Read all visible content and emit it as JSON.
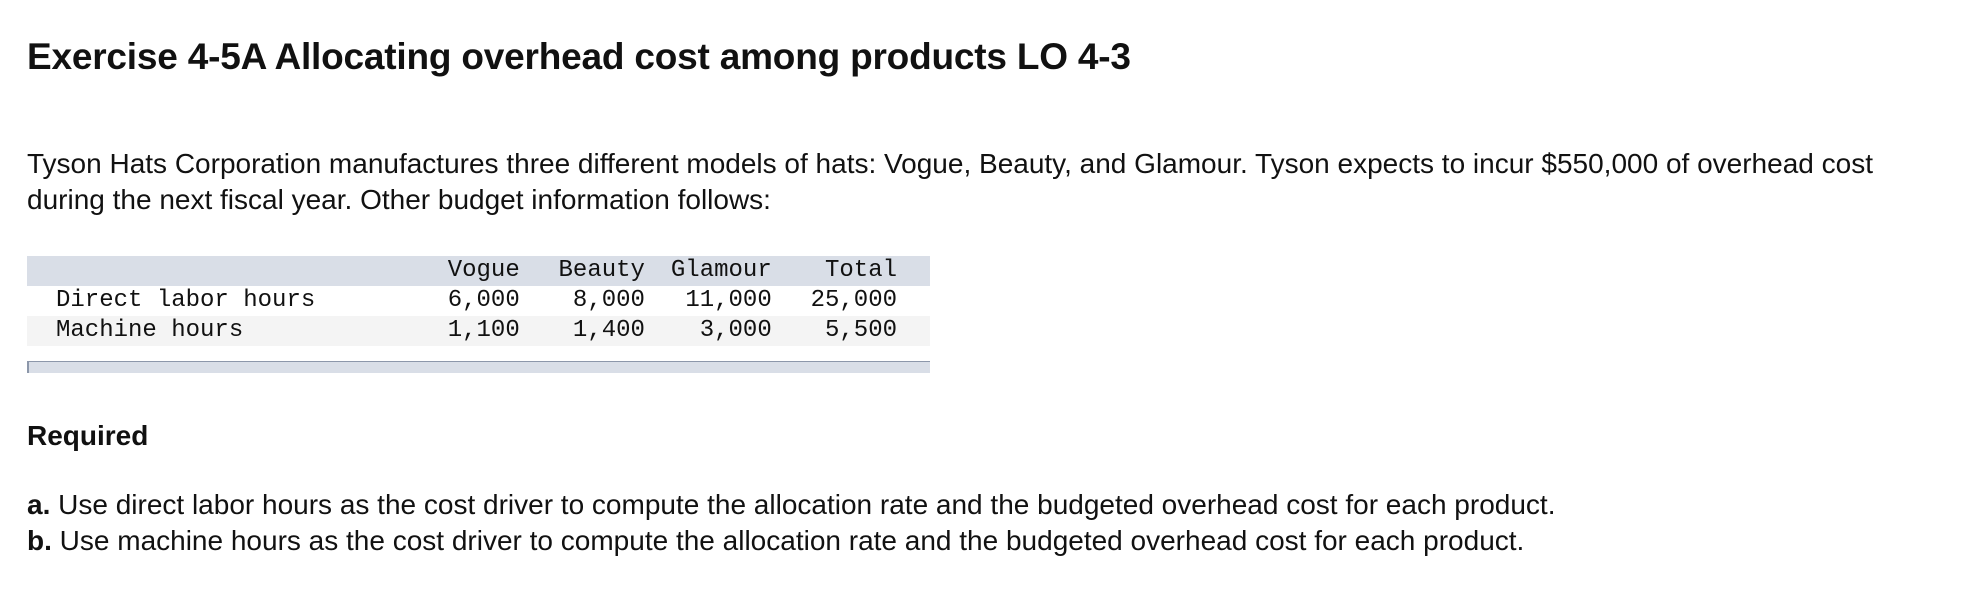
{
  "exercise": {
    "title": "Exercise 4-5A Allocating overhead cost among products LO 4-3",
    "intro": "Tyson Hats Corporation manufactures three different models of hats: Vogue, Beauty, and Glamour. Tyson expects to incur $550,000 of overhead cost during the next fiscal year. Other budget information follows:"
  },
  "budget_table": {
    "headers": [
      "",
      "Vogue",
      "Beauty",
      "Glamour",
      "Total"
    ],
    "rows": [
      {
        "label": "Direct labor hours",
        "vogue": "6,000",
        "beauty": "8,000",
        "glamour": "11,000",
        "total": "25,000"
      },
      {
        "label": "Machine hours",
        "vogue": "1,100",
        "beauty": "1,400",
        "glamour": "3,000",
        "total": "5,500"
      }
    ]
  },
  "requirements": {
    "heading": "Required",
    "items": [
      {
        "letter": "a.",
        "text": "Use direct labor hours as the cost driver to compute the allocation rate and the budgeted overhead cost for each product."
      },
      {
        "letter": "b.",
        "text": "Use machine hours as the cost driver to compute the allocation rate and the budgeted overhead cost for each product."
      }
    ]
  }
}
